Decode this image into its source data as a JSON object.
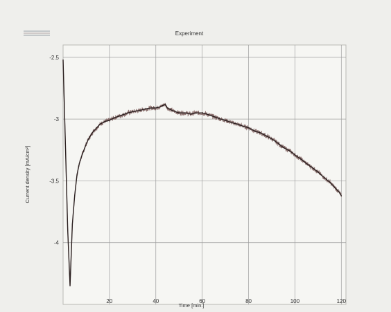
{
  "chart_data": {
    "type": "line",
    "title": "Experiment",
    "xlabel": "Time [min.]",
    "ylabel": "Current density [mA/cm²]",
    "xlim": [
      0,
      122
    ],
    "ylim": [
      -4.5,
      -2.4
    ],
    "x_ticks": [
      20,
      40,
      60,
      80,
      100,
      120
    ],
    "x_tick_labels": [
      "20",
      "40",
      "60",
      "80",
      "100",
      "120"
    ],
    "y_ticks": [
      -2.5,
      -3,
      -3.5,
      -4
    ],
    "y_tick_labels": [
      "-2.5",
      "-3",
      "-3.5",
      "-4"
    ],
    "grid": true,
    "legend": "top-left",
    "colors": {
      "line": "#2b2020",
      "noise": "#7a5a58",
      "grid": "#9d9d9d",
      "plot_bg": "#f6f6f3",
      "outer_bg": "#efefec"
    },
    "series": [
      {
        "x": [
          0,
          1,
          2,
          3,
          4,
          5,
          6,
          7,
          8,
          9,
          10,
          11,
          12,
          13,
          14,
          15,
          16,
          18,
          20,
          22,
          25,
          28,
          30,
          33,
          35,
          38,
          40,
          42,
          43,
          44,
          45,
          47,
          50,
          53,
          55,
          57,
          60,
          62,
          65,
          68,
          70,
          73,
          75,
          78,
          80,
          83,
          85,
          88,
          90,
          93,
          95,
          98,
          100,
          103,
          105,
          108,
          110,
          113,
          115,
          117,
          118,
          119,
          120
        ],
        "y": [
          -2.52,
          -3.2,
          -3.9,
          -4.35,
          -3.85,
          -3.62,
          -3.45,
          -3.36,
          -3.3,
          -3.25,
          -3.2,
          -3.16,
          -3.13,
          -3.1,
          -3.08,
          -3.06,
          -3.04,
          -3.02,
          -3.01,
          -2.99,
          -2.97,
          -2.95,
          -2.94,
          -2.93,
          -2.92,
          -2.91,
          -2.91,
          -2.9,
          -2.89,
          -2.88,
          -2.91,
          -2.93,
          -2.95,
          -2.95,
          -2.96,
          -2.95,
          -2.95,
          -2.96,
          -2.98,
          -3.0,
          -3.01,
          -3.03,
          -3.04,
          -3.06,
          -3.07,
          -3.1,
          -3.11,
          -3.14,
          -3.16,
          -3.2,
          -3.23,
          -3.26,
          -3.29,
          -3.33,
          -3.36,
          -3.4,
          -3.43,
          -3.48,
          -3.51,
          -3.55,
          -3.57,
          -3.59,
          -3.62
        ]
      }
    ]
  }
}
